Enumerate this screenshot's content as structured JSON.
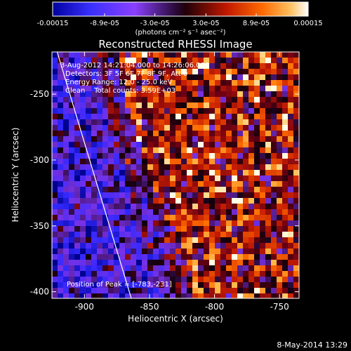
{
  "colorbar": {
    "tick_labels": [
      "-0.00015",
      "-8.9e-05",
      "-3.0e-05",
      "3.0e-05",
      "8.9e-05",
      "0.00015"
    ],
    "tick_values": [
      -0.00015,
      -8.9e-05,
      -3e-05,
      3e-05,
      8.9e-05,
      0.00015
    ],
    "range": [
      -0.00015,
      0.00015
    ],
    "units_label": "(photons cm⁻² s⁻¹ asec⁻²)",
    "palette": [
      "#000080",
      "#2f2fff",
      "#9b3cff",
      "#5a1a7a",
      "#000000",
      "#7a0010",
      "#d02000",
      "#ff6a00",
      "#ffb040",
      "#ffffff"
    ]
  },
  "image": {
    "title": "Reconstructed RHESSI Image",
    "annotations": [
      "3-Aug-2012 14:21:04.000 to 14:26:06.000",
      "Detectors: 3F 5F 6F 7F 8F 9F, Att 0",
      "Energy Range: 12.0 - 25.0 keV",
      "Clean    Total counts: 3.59E+03"
    ],
    "peak_label": "Position of Peak = [-783,-231]",
    "x_axis": {
      "label": "Heliocentric X (arcsec)",
      "range": [
        -925,
        -735
      ],
      "ticks": [
        -900,
        -850,
        -800,
        -750
      ],
      "tick_labels": [
        "-900",
        "-850",
        "-800",
        "-750"
      ]
    },
    "y_axis": {
      "label": "Heliocentric Y (arcsec)",
      "range": [
        -405,
        -218
      ],
      "ticks": [
        -250,
        -300,
        -350,
        -400
      ],
      "tick_labels": [
        "-250",
        "-300",
        "-350",
        "-400"
      ]
    },
    "limb_line": {
      "x_start": -921,
      "y_start": -218,
      "x_end": -864,
      "y_end": -405
    }
  },
  "footer": {
    "timestamp": "8-May-2014 13:29"
  }
}
